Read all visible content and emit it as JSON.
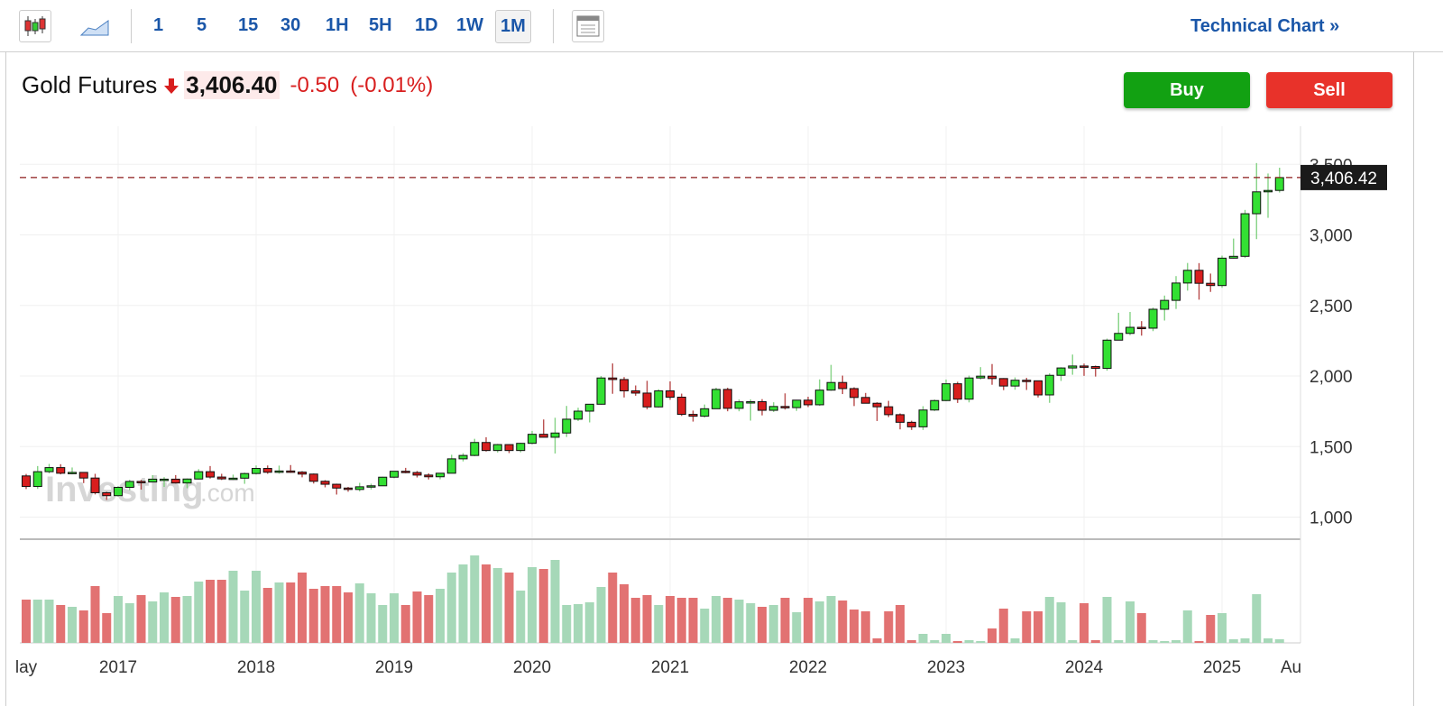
{
  "toolbar": {
    "intervals": [
      "1",
      "5",
      "15",
      "30",
      "1H",
      "5H",
      "1D",
      "1W",
      "1M"
    ],
    "selected": "1M",
    "technical_chart": "Technical Chart »"
  },
  "header": {
    "name": "Gold Futures",
    "price": "3,406.40",
    "change": "-0.50",
    "change_pct": "(-0.01%)"
  },
  "buttons": {
    "buy": "Buy",
    "sell": "Sell"
  },
  "watermark": {
    "brand": "Investing",
    "suffix": ".com"
  },
  "chart_data": {
    "type": "candlestick",
    "categories": [
      "lay",
      null,
      null,
      null,
      null,
      null,
      null,
      null,
      "2017",
      null,
      null,
      null,
      null,
      null,
      null,
      null,
      null,
      null,
      null,
      null,
      "2018",
      null,
      null,
      null,
      null,
      null,
      null,
      null,
      null,
      null,
      null,
      null,
      "2019",
      null,
      null,
      null,
      null,
      null,
      null,
      null,
      null,
      null,
      null,
      null,
      "2020",
      null,
      null,
      null,
      null,
      null,
      null,
      null,
      null,
      null,
      null,
      null,
      "2021",
      null,
      null,
      null,
      null,
      null,
      null,
      null,
      null,
      null,
      null,
      null,
      "2022",
      null,
      null,
      null,
      null,
      null,
      null,
      null,
      null,
      null,
      null,
      null,
      "2023",
      null,
      null,
      null,
      null,
      null,
      null,
      null,
      null,
      null,
      null,
      null,
      "2024",
      null,
      null,
      null,
      null,
      null,
      null,
      null,
      null,
      null,
      null,
      null,
      "2025",
      null,
      null,
      null,
      null,
      null,
      "Au"
    ],
    "open": [
      1292,
      1217,
      1322,
      1351,
      1311,
      1317,
      1277,
      1173,
      1152,
      1211,
      1253,
      1249,
      1269,
      1269,
      1242,
      1270,
      1322,
      1284,
      1271,
      1276,
      1309,
      1345,
      1318,
      1327,
      1319,
      1305,
      1254,
      1233,
      1206,
      1196,
      1215,
      1222,
      1283,
      1325,
      1316,
      1298,
      1286,
      1311,
      1413,
      1437,
      1529,
      1472,
      1514,
      1472,
      1523,
      1587,
      1566,
      1596,
      1694,
      1751,
      1800,
      1986,
      1975,
      1895,
      1879,
      1781,
      1895,
      1850,
      1728,
      1715,
      1768,
      1905,
      1771,
      1817,
      1818,
      1757,
      1784,
      1776,
      1829,
      1796,
      1900,
      1954,
      1911,
      1848,
      1807,
      1782,
      1726,
      1672,
      1640,
      1759,
      1826,
      1945,
      1836,
      1986,
      1999,
      1982,
      1929,
      1970,
      1966,
      1866,
      2005,
      2057,
      2071,
      2067,
      2054,
      2254,
      2302,
      2345,
      2339,
      2473,
      2536,
      2659,
      2749,
      2657,
      2641,
      2835,
      2848,
      3150,
      3305,
      3315,
      null
    ],
    "high": [
      1306,
      1362,
      1377,
      1375,
      1352,
      1319,
      1307,
      1180,
      1220,
      1264,
      1264,
      1297,
      1283,
      1298,
      1274,
      1340,
      1362,
      1307,
      1301,
      1315,
      1366,
      1366,
      1365,
      1369,
      1326,
      1309,
      1262,
      1237,
      1214,
      1243,
      1237,
      1286,
      1326,
      1349,
      1327,
      1310,
      1312,
      1442,
      1453,
      1555,
      1566,
      1519,
      1516,
      1527,
      1611,
      1692,
      1704,
      1788,
      1775,
      1800,
      2000,
      2089,
      1992,
      1933,
      1966,
      1906,
      1962,
      1875,
      1755,
      1798,
      1917,
      1917,
      1834,
      1834,
      1836,
      1814,
      1877,
      1831,
      1853,
      1976,
      2079,
      2003,
      1920,
      1880,
      1814,
      1824,
      1735,
      1683,
      1786,
      1833,
      1975,
      1959,
      2003,
      2063,
      2085,
      1985,
      1990,
      1987,
      1967,
      2019,
      2062,
      2152,
      2088,
      2074,
      2265,
      2448,
      2454,
      2389,
      2485,
      2570,
      2708,
      2801,
      2800,
      2726,
      2853,
      2974,
      3177,
      3509,
      3435,
      3476,
      null
    ],
    "low": [
      1199,
      1200,
      1310,
      1303,
      1303,
      1241,
      1161,
      1122,
      1146,
      1191,
      1195,
      1246,
      1214,
      1238,
      1205,
      1267,
      1273,
      1263,
      1264,
      1236,
      1302,
      1307,
      1308,
      1314,
      1282,
      1238,
      1211,
      1160,
      1180,
      1182,
      1196,
      1221,
      1275,
      1311,
      1281,
      1267,
      1268,
      1310,
      1395,
      1432,
      1465,
      1458,
      1454,
      1459,
      1516,
      1565,
      1451,
      1568,
      1681,
      1671,
      1797,
      1874,
      1848,
      1860,
      1764,
      1776,
      1832,
      1717,
      1677,
      1706,
      1767,
      1750,
      1750,
      1684,
      1721,
      1745,
      1762,
      1753,
      1780,
      1788,
      1895,
      1872,
      1787,
      1806,
      1681,
      1709,
      1622,
      1618,
      1618,
      1752,
      1822,
      1809,
      1813,
      1975,
      1938,
      1900,
      1903,
      1901,
      1848,
      1810,
      1965,
      2009,
      2001,
      1996,
      2038,
      2253,
      2289,
      2286,
      2318,
      2393,
      2475,
      2605,
      2541,
      2596,
      2625,
      2832,
      2836,
      2970,
      3121,
      3300,
      null
    ],
    "close": [
      1217,
      1322,
      1351,
      1311,
      1317,
      1277,
      1173,
      1152,
      1211,
      1253,
      1249,
      1269,
      1269,
      1242,
      1270,
      1322,
      1284,
      1271,
      1276,
      1309,
      1345,
      1318,
      1327,
      1319,
      1305,
      1254,
      1233,
      1206,
      1196,
      1215,
      1222,
      1283,
      1325,
      1316,
      1298,
      1286,
      1311,
      1413,
      1437,
      1529,
      1472,
      1514,
      1472,
      1523,
      1587,
      1566,
      1596,
      1694,
      1751,
      1800,
      1986,
      1975,
      1895,
      1879,
      1781,
      1895,
      1850,
      1728,
      1715,
      1768,
      1905,
      1771,
      1817,
      1818,
      1757,
      1784,
      1776,
      1829,
      1796,
      1900,
      1954,
      1911,
      1848,
      1807,
      1782,
      1726,
      1672,
      1640,
      1759,
      1826,
      1945,
      1836,
      1986,
      1999,
      1982,
      1929,
      1970,
      1966,
      1866,
      2005,
      2057,
      2071,
      2067,
      2054,
      2254,
      2302,
      2345,
      2339,
      2473,
      2536,
      2659,
      2749,
      2657,
      2641,
      2835,
      2848,
      3150,
      3305,
      3315,
      3406,
      null
    ],
    "volume": [
      48,
      48,
      48,
      42,
      40,
      36,
      63,
      33,
      52,
      44,
      53,
      46,
      56,
      51,
      52,
      68,
      70,
      70,
      80,
      58,
      80,
      61,
      67,
      67,
      78,
      60,
      63,
      63,
      56,
      66,
      55,
      42,
      55,
      42,
      57,
      53,
      60,
      78,
      87,
      97,
      87,
      83,
      78,
      58,
      84,
      82,
      92,
      42,
      43,
      45,
      62,
      78,
      65,
      50,
      53,
      42,
      52,
      50,
      50,
      38,
      52,
      50,
      48,
      44,
      40,
      42,
      50,
      34,
      50,
      46,
      52,
      47,
      37,
      35,
      5,
      35,
      42,
      3,
      10,
      3,
      10,
      2,
      3,
      2,
      16,
      38,
      5,
      35,
      35,
      51,
      45,
      3,
      44,
      3,
      51,
      3,
      46,
      33,
      3,
      2,
      3,
      36,
      2,
      31,
      33,
      4,
      5,
      54,
      5,
      4,
      null
    ],
    "ylim": [
      850,
      3770
    ],
    "yticks": [
      {
        "value": 1000,
        "label": "1,000"
      },
      {
        "value": 1500,
        "label": "1,500"
      },
      {
        "value": 2000,
        "label": "2,000"
      },
      {
        "value": 2500,
        "label": "2,500"
      },
      {
        "value": 3000,
        "label": "3,000"
      },
      {
        "value": 3500,
        "label": "3,500"
      }
    ],
    "last_price": 3406.42,
    "last_price_label": "3,406.42",
    "up_color": "#33e033",
    "down_color": "#d81e1e",
    "volume_up_color": "#a6d8b8",
    "volume_down_color": "#e27272",
    "price_line_color": "#8b1a1a",
    "grid": true
  }
}
